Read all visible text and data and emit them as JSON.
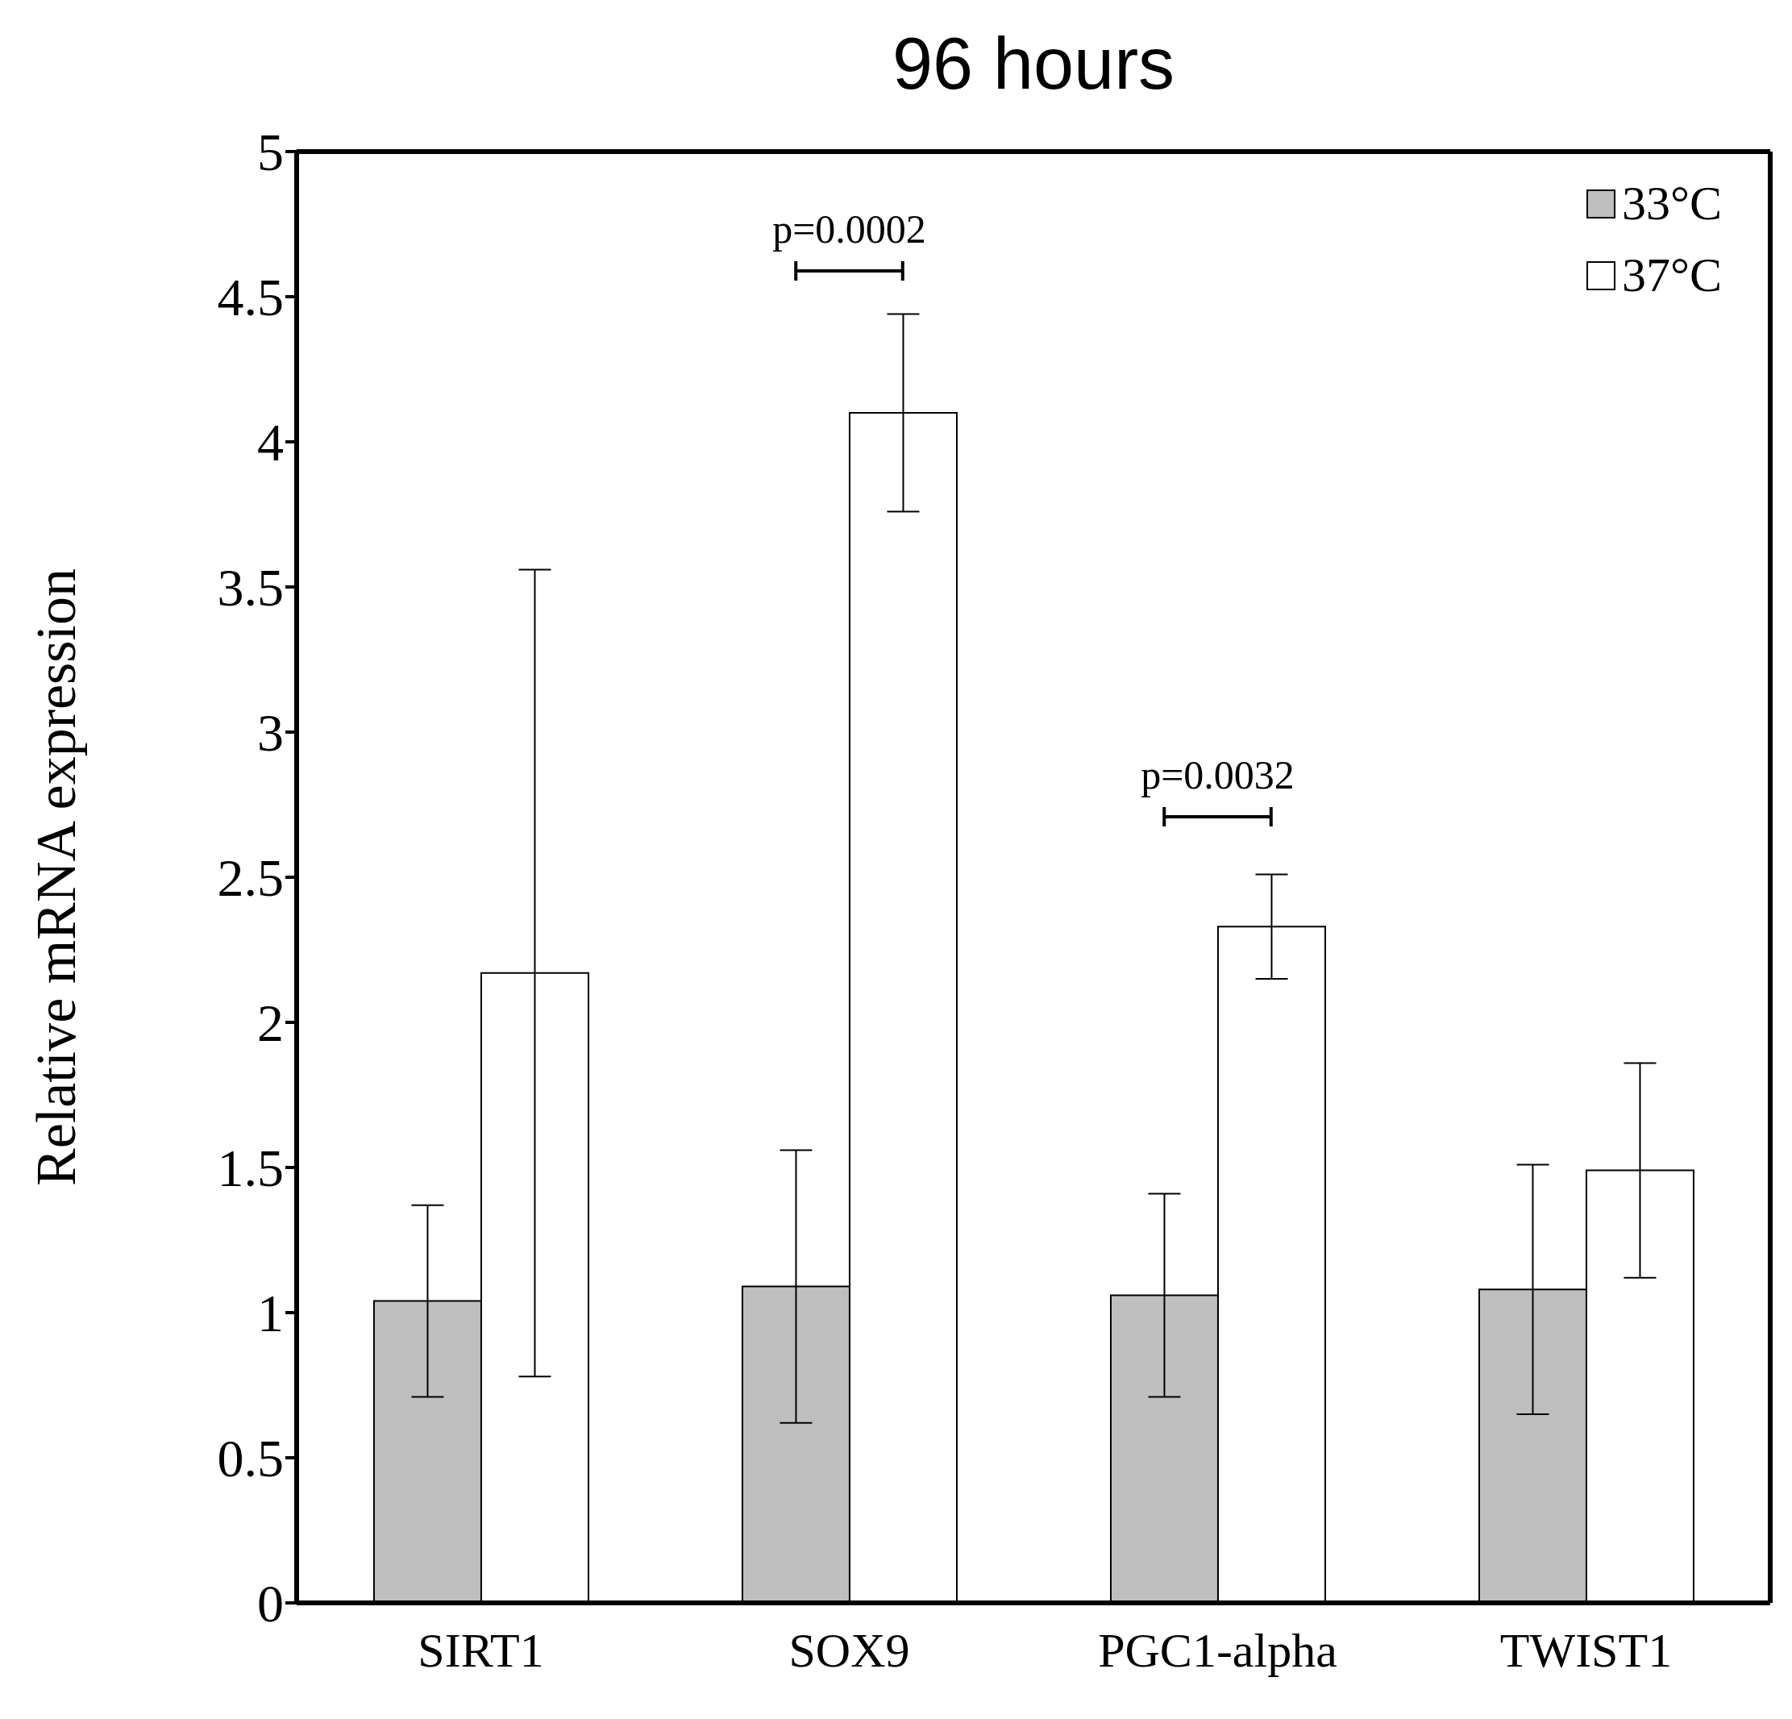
{
  "chart_data": {
    "type": "bar",
    "title": "96 hours",
    "ylabel": "Relative mRNA expression",
    "categories": [
      "SIRT1",
      "SOX9",
      "PGC1-alpha",
      "TWIST1"
    ],
    "series": [
      {
        "name": "33°C",
        "color": "#bfbfbf",
        "values": [
          1.04,
          1.09,
          1.06,
          1.08
        ],
        "errors": [
          0.33,
          0.47,
          0.35,
          0.43
        ]
      },
      {
        "name": "37°C",
        "color": "#ffffff",
        "values": [
          2.17,
          4.1,
          2.33,
          1.49
        ],
        "errors": [
          1.39,
          0.34,
          0.18,
          0.37
        ]
      }
    ],
    "ylim": [
      0,
      5
    ],
    "yticks": [
      0,
      0.5,
      1,
      1.5,
      2,
      2.5,
      3,
      3.5,
      4,
      4.5,
      5
    ],
    "legend": "top right",
    "annotations": [
      "p=0.0002",
      "p=0.0032"
    ]
  }
}
